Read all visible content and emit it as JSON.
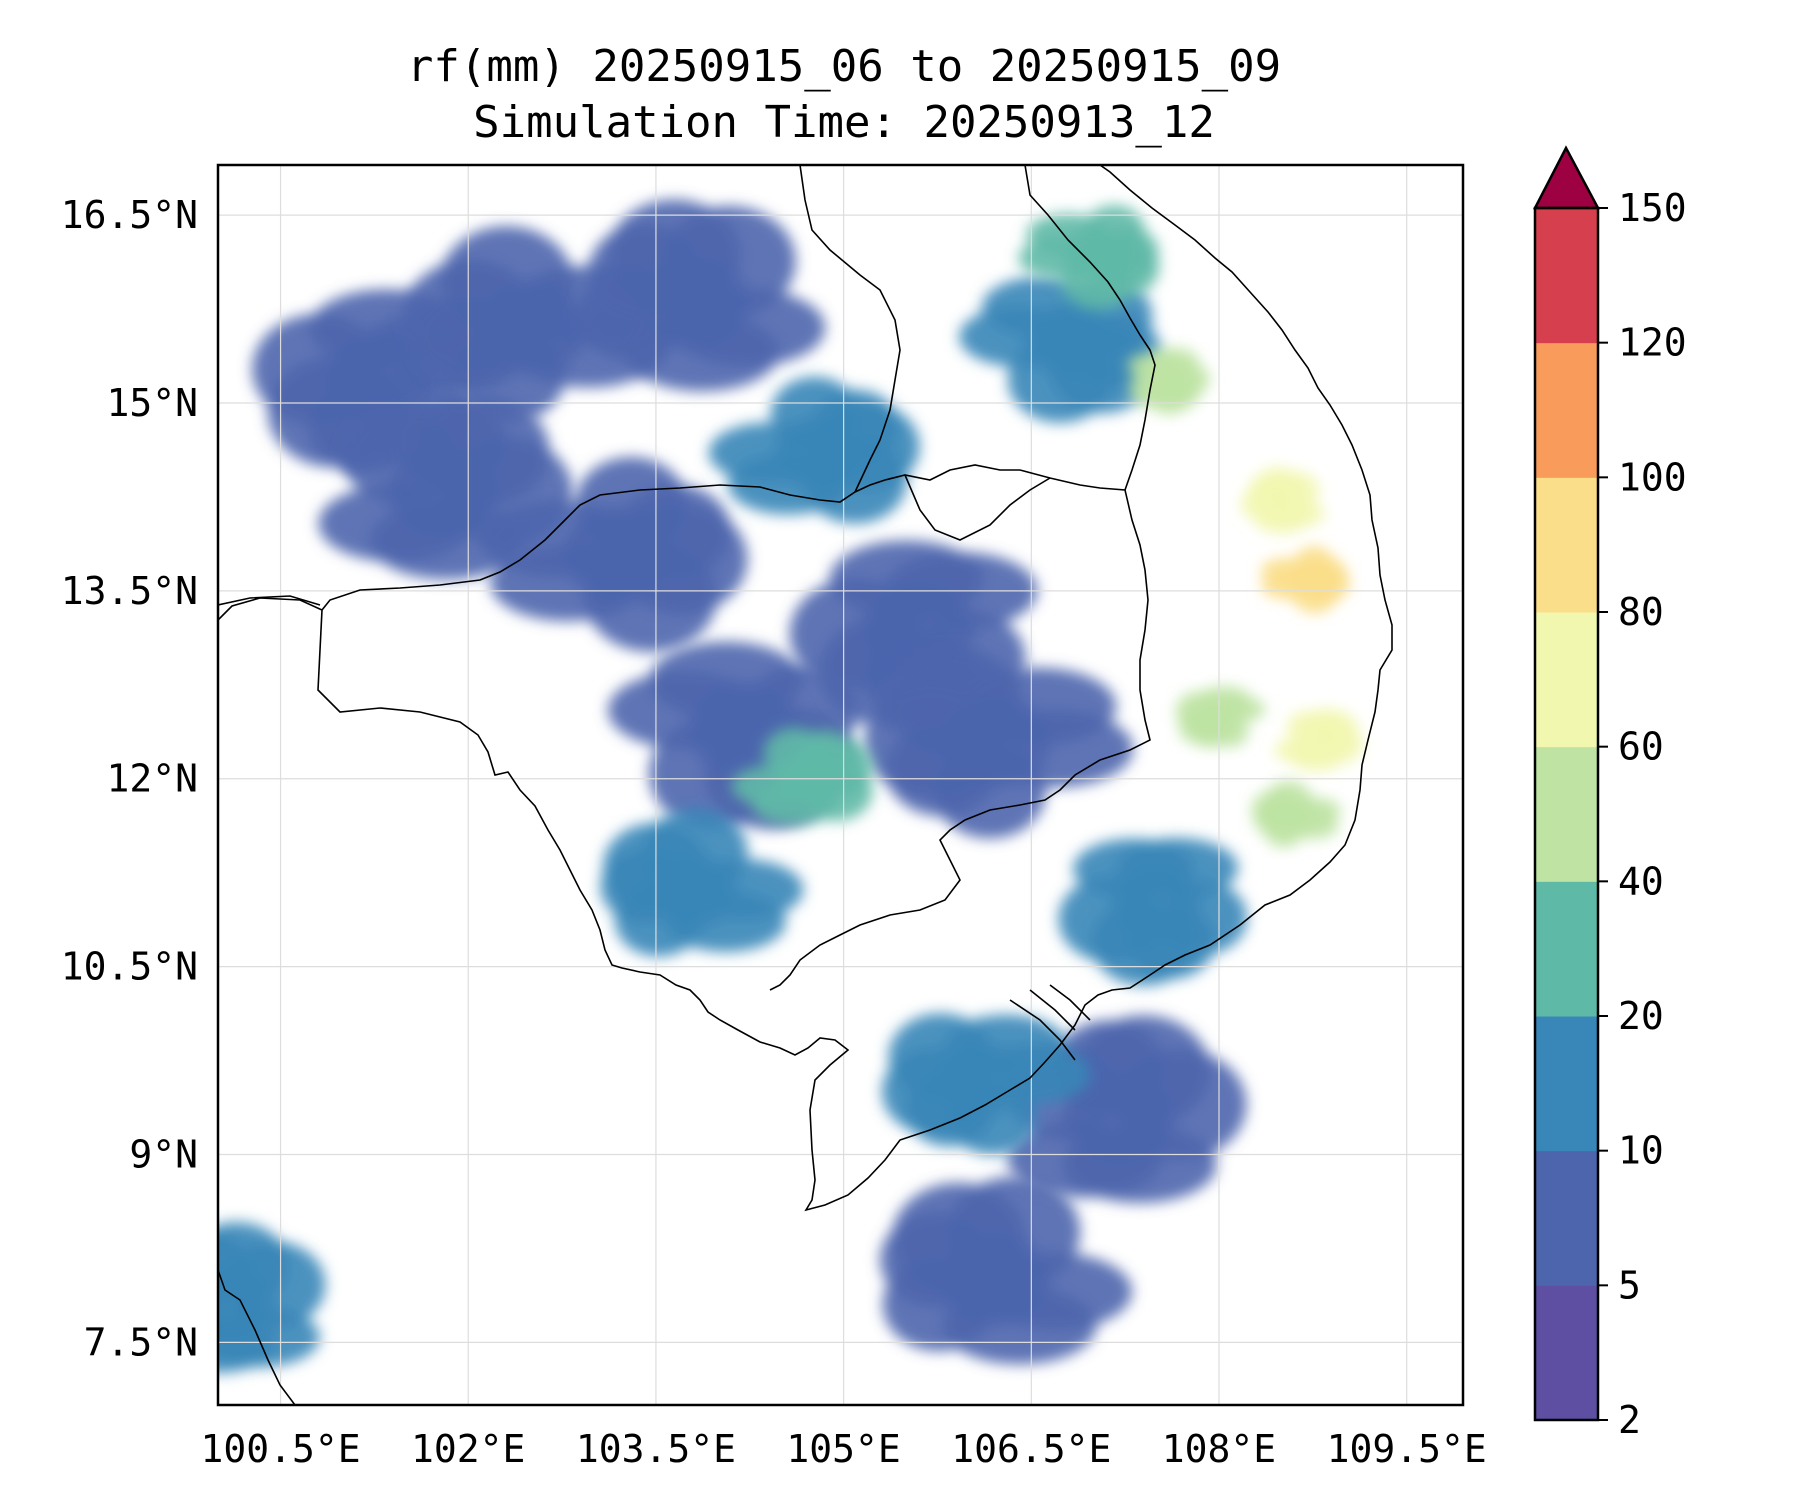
{
  "title": {
    "line1": "rf(mm) 20250915_06 to 20250915_09",
    "line2": "Simulation Time: 20250913_12"
  },
  "map": {
    "lon_range": [
      100.0,
      109.95
    ],
    "lat_range": [
      7.0,
      16.9
    ],
    "lon_ticks": [
      100.5,
      102,
      103.5,
      105,
      106.5,
      108,
      109.5
    ],
    "lon_tick_labels": [
      "100.5°E",
      "102°E",
      "103.5°E",
      "105°E",
      "106.5°E",
      "108°E",
      "109.5°E"
    ],
    "lat_ticks": [
      7.5,
      9,
      10.5,
      12,
      13.5,
      15,
      16.5
    ],
    "lat_tick_labels": [
      "7.5°N",
      "9°N",
      "10.5°N",
      "12°N",
      "13.5°N",
      "15°N",
      "16.5°N"
    ],
    "gridlines": true
  },
  "colorbar": {
    "levels": [
      2,
      5,
      10,
      20,
      40,
      60,
      80,
      100,
      120,
      150
    ],
    "level_labels": [
      "2",
      "5",
      "10",
      "20",
      "40",
      "60",
      "80",
      "100",
      "120",
      "150"
    ],
    "colors": [
      "#5e4fa2",
      "#4c65ad",
      "#3986b8",
      "#5fb9a7",
      "#bee3a3",
      "#f2f7b0",
      "#fbde8a",
      "#f99c5b",
      "#d6404e"
    ],
    "extend_color": "#9e0142",
    "extend": "max",
    "orientation": "vertical"
  },
  "rain_areas": [
    {
      "lon": 101.3,
      "lat": 15.2,
      "mm": 5
    },
    {
      "lon": 102.5,
      "lat": 15.6,
      "mm": 5
    },
    {
      "lon": 103.8,
      "lat": 15.8,
      "mm": 5
    },
    {
      "lon": 104.8,
      "lat": 14.6,
      "mm": 10
    },
    {
      "lon": 101.8,
      "lat": 14.3,
      "mm": 5
    },
    {
      "lon": 103.2,
      "lat": 13.8,
      "mm": 5
    },
    {
      "lon": 104.2,
      "lat": 12.4,
      "mm": 5
    },
    {
      "lon": 104.7,
      "lat": 12.0,
      "mm": 20
    },
    {
      "lon": 105.6,
      "lat": 13.2,
      "mm": 5
    },
    {
      "lon": 106.2,
      "lat": 12.3,
      "mm": 5
    },
    {
      "lon": 106.8,
      "lat": 15.5,
      "mm": 10
    },
    {
      "lon": 107.0,
      "lat": 16.2,
      "mm": 20
    },
    {
      "lon": 107.6,
      "lat": 15.2,
      "mm": 40
    },
    {
      "lon": 108.5,
      "lat": 14.2,
      "mm": 60
    },
    {
      "lon": 108.7,
      "lat": 13.6,
      "mm": 80
    },
    {
      "lon": 108.0,
      "lat": 12.5,
      "mm": 40
    },
    {
      "lon": 108.8,
      "lat": 12.3,
      "mm": 60
    },
    {
      "lon": 108.6,
      "lat": 11.7,
      "mm": 40
    },
    {
      "lon": 107.5,
      "lat": 11.0,
      "mm": 10
    },
    {
      "lon": 106.1,
      "lat": 9.6,
      "mm": 10
    },
    {
      "lon": 103.8,
      "lat": 11.1,
      "mm": 10
    },
    {
      "lon": 106.2,
      "lat": 8.0,
      "mm": 5
    },
    {
      "lon": 107.2,
      "lat": 9.3,
      "mm": 5
    },
    {
      "lon": 100.1,
      "lat": 7.8,
      "mm": 10
    }
  ]
}
